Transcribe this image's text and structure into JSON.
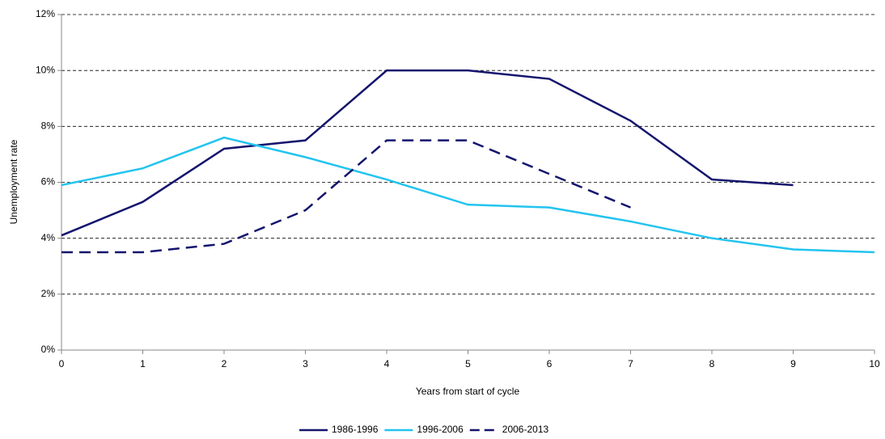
{
  "chart_data": {
    "type": "line",
    "x_label": "Years from start of cycle",
    "y_label": "Unemployment rate",
    "x": [
      0,
      1,
      2,
      3,
      4,
      5,
      6,
      7,
      8,
      9,
      10
    ],
    "series": [
      {
        "name": "1986-1996",
        "color": "#14146e",
        "dash": "solid",
        "values": [
          4.1,
          5.3,
          7.2,
          7.5,
          10.0,
          10.0,
          9.7,
          8.2,
          6.1,
          5.9,
          null
        ]
      },
      {
        "name": "1996-2006",
        "color": "#22c4ef",
        "dash": "solid",
        "values": [
          5.9,
          6.5,
          7.6,
          6.9,
          6.1,
          5.2,
          5.1,
          4.6,
          4.0,
          3.6,
          3.5
        ]
      },
      {
        "name": "2006-2013",
        "color": "#14146e",
        "dash": "dashed",
        "values": [
          3.5,
          3.5,
          3.8,
          5.0,
          7.5,
          7.5,
          6.3,
          5.1,
          null,
          null,
          null
        ]
      }
    ],
    "xlim": [
      0,
      10
    ],
    "xticks": [
      0,
      1,
      2,
      3,
      4,
      5,
      6,
      7,
      8,
      9,
      10
    ],
    "ylim": [
      0,
      12
    ],
    "yticks": [
      {
        "value": 0,
        "label": "0%"
      },
      {
        "value": 2,
        "label": "2%"
      },
      {
        "value": 4,
        "label": "4%"
      },
      {
        "value": 6,
        "label": "6%"
      },
      {
        "value": 8,
        "label": "8%"
      },
      {
        "value": 10,
        "label": "10%"
      },
      {
        "value": 12,
        "label": "12%"
      }
    ],
    "grid": true,
    "legend": "bottom"
  }
}
